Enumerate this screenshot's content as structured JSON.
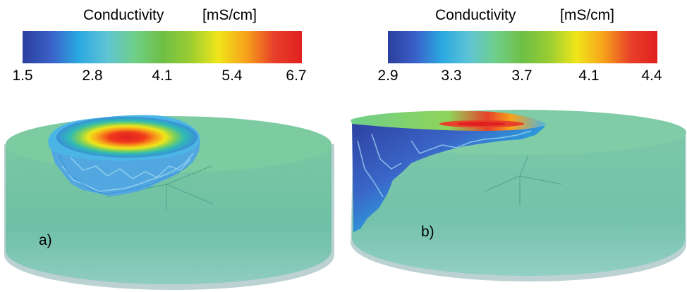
{
  "panels": [
    {
      "label": "a)",
      "colorbar": {
        "title": "Conductivity",
        "unit": "[mS/cm]",
        "ticks": [
          "1.5",
          "2.8",
          "4.1",
          "5.4",
          "6.7"
        ]
      }
    },
    {
      "label": "b)",
      "colorbar": {
        "title": "Conductivity",
        "unit": "[mS/cm]",
        "ticks": [
          "2.9",
          "3.3",
          "3.7",
          "4.1",
          "4.4"
        ]
      }
    }
  ],
  "colors": {
    "cmap": [
      "#2b3f9c",
      "#3a5fc8",
      "#2aa8e0",
      "#5ec4d6",
      "#6fcf8a",
      "#6dbf45",
      "#9acd32",
      "#f0e61a",
      "#f7a21b",
      "#e8402a",
      "#e02020"
    ],
    "cylinder_body": "#6fc2a5",
    "cylinder_top": "#76c7a4",
    "cylinder_rim": "#b9cfd0"
  }
}
